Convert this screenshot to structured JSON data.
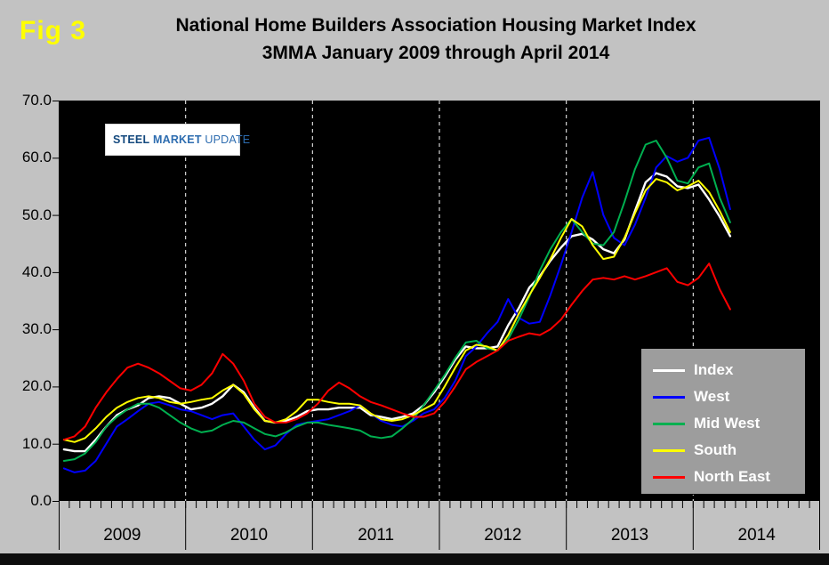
{
  "figure_label": "Fig 3",
  "title": {
    "line1": "National Home Builders Association Housing Market Index",
    "line2": "3MMA January 2009 through April 2014"
  },
  "logo": {
    "steel": "STEEL",
    "market": "MARKET",
    "update": "UPDATE"
  },
  "chart_data": {
    "type": "line",
    "title": "National Home Builders Association Housing Market Index",
    "subtitle": "3MMA January 2009 through April 2014",
    "ylim": [
      0,
      70
    ],
    "y_tick_step": 10,
    "y_tick_labels": [
      "70.0",
      "60.0",
      "50.0",
      "40.0",
      "30.0",
      "20.0",
      "10.0",
      "0.0"
    ],
    "x_year_labels": [
      "2009",
      "2010",
      "2011",
      "2012",
      "2013",
      "2014"
    ],
    "x_axis_slots": 72,
    "plot_background": "#000000",
    "grid": "vertical dashed white lines at year boundaries, black plot area",
    "legend_position": "inside bottom-right",
    "months": [
      "2009-01",
      "2009-02",
      "2009-03",
      "2009-04",
      "2009-05",
      "2009-06",
      "2009-07",
      "2009-08",
      "2009-09",
      "2009-10",
      "2009-11",
      "2009-12",
      "2010-01",
      "2010-02",
      "2010-03",
      "2010-04",
      "2010-05",
      "2010-06",
      "2010-07",
      "2010-08",
      "2010-09",
      "2010-10",
      "2010-11",
      "2010-12",
      "2011-01",
      "2011-02",
      "2011-03",
      "2011-04",
      "2011-05",
      "2011-06",
      "2011-07",
      "2011-08",
      "2011-09",
      "2011-10",
      "2011-11",
      "2011-12",
      "2012-01",
      "2012-02",
      "2012-03",
      "2012-04",
      "2012-05",
      "2012-06",
      "2012-07",
      "2012-08",
      "2012-09",
      "2012-10",
      "2012-11",
      "2012-12",
      "2013-01",
      "2013-02",
      "2013-03",
      "2013-04",
      "2013-05",
      "2013-06",
      "2013-07",
      "2013-08",
      "2013-09",
      "2013-10",
      "2013-11",
      "2013-12",
      "2014-01",
      "2014-02",
      "2014-03",
      "2014-04"
    ],
    "series": [
      {
        "name": "Index",
        "color": "#ffffff",
        "values": [
          9.0,
          8.7,
          8.7,
          10.7,
          13.0,
          15.0,
          16.0,
          16.7,
          18.0,
          18.3,
          18.0,
          17.0,
          16.0,
          16.3,
          17.0,
          18.3,
          20.3,
          19.0,
          16.3,
          14.0,
          13.7,
          14.0,
          14.7,
          15.7,
          16.0,
          16.0,
          16.3,
          16.3,
          16.3,
          15.0,
          14.7,
          14.3,
          14.7,
          15.3,
          16.7,
          19.0,
          21.7,
          24.7,
          27.0,
          26.7,
          26.7,
          27.0,
          30.7,
          33.7,
          37.3,
          39.3,
          42.0,
          44.3,
          46.3,
          46.7,
          45.7,
          44.0,
          43.3,
          45.7,
          50.7,
          55.7,
          57.3,
          56.7,
          55.0,
          54.7,
          55.3,
          52.7,
          49.7,
          46.3
        ]
      },
      {
        "name": "West",
        "color": "#0000ff",
        "values": [
          5.7,
          5.0,
          5.3,
          7.0,
          10.0,
          13.0,
          14.3,
          15.7,
          17.0,
          17.3,
          16.7,
          16.0,
          15.7,
          15.0,
          14.3,
          15.0,
          15.3,
          13.0,
          10.7,
          9.0,
          9.7,
          11.7,
          13.3,
          13.7,
          14.0,
          14.3,
          15.0,
          15.7,
          16.7,
          15.3,
          14.0,
          13.3,
          13.0,
          14.0,
          15.3,
          16.0,
          18.0,
          21.0,
          25.3,
          27.0,
          29.3,
          31.3,
          35.3,
          32.0,
          31.0,
          31.3,
          36.0,
          41.3,
          47.0,
          53.0,
          57.5,
          50.0,
          46.0,
          44.7,
          48.3,
          53.0,
          58.3,
          60.3,
          59.3,
          60.0,
          63.0,
          63.5,
          58.0,
          51.0
        ]
      },
      {
        "name": "Mid West",
        "color": "#00b050",
        "values": [
          7.0,
          7.3,
          8.3,
          10.3,
          13.0,
          14.7,
          16.0,
          17.0,
          17.0,
          16.3,
          15.0,
          13.7,
          12.7,
          12.0,
          12.3,
          13.3,
          14.0,
          13.7,
          12.7,
          11.7,
          11.3,
          12.0,
          13.0,
          13.7,
          13.7,
          13.3,
          13.0,
          12.7,
          12.3,
          11.3,
          11.0,
          11.3,
          12.7,
          14.3,
          16.7,
          19.3,
          22.0,
          25.0,
          27.7,
          28.0,
          26.7,
          26.3,
          28.3,
          31.7,
          35.7,
          40.3,
          44.0,
          47.0,
          49.3,
          47.0,
          45.0,
          44.7,
          47.0,
          52.3,
          58.0,
          62.3,
          63.0,
          60.0,
          56.0,
          55.5,
          58.3,
          59.0,
          53.0,
          48.7
        ]
      },
      {
        "name": "South",
        "color": "#ffff00",
        "values": [
          10.7,
          10.3,
          11.0,
          12.7,
          14.7,
          16.3,
          17.3,
          18.0,
          18.3,
          18.0,
          17.3,
          17.0,
          17.3,
          17.7,
          18.0,
          19.3,
          20.3,
          18.7,
          16.0,
          14.0,
          13.7,
          14.3,
          15.7,
          17.7,
          17.7,
          17.3,
          17.0,
          17.0,
          16.7,
          15.3,
          14.3,
          14.0,
          14.3,
          15.0,
          16.0,
          17.0,
          20.0,
          23.3,
          26.3,
          27.3,
          27.0,
          26.3,
          29.0,
          32.7,
          36.0,
          39.0,
          42.3,
          46.0,
          49.3,
          48.0,
          44.7,
          42.3,
          42.7,
          46.0,
          50.3,
          54.3,
          56.3,
          55.7,
          54.3,
          55.0,
          56.0,
          54.0,
          50.7,
          47.0
        ]
      },
      {
        "name": "North East",
        "color": "#ff0000",
        "values": [
          10.7,
          11.3,
          13.0,
          16.3,
          19.0,
          21.3,
          23.3,
          24.0,
          23.3,
          22.3,
          21.0,
          19.7,
          19.3,
          20.3,
          22.3,
          25.7,
          24.0,
          21.0,
          17.0,
          14.7,
          13.7,
          13.7,
          14.3,
          15.3,
          17.0,
          19.3,
          20.7,
          19.7,
          18.3,
          17.3,
          16.7,
          16.0,
          15.3,
          14.7,
          14.7,
          15.3,
          17.3,
          20.0,
          23.0,
          24.3,
          25.3,
          26.3,
          28.0,
          28.7,
          29.3,
          29.0,
          30.0,
          31.7,
          34.3,
          36.7,
          38.7,
          39.0,
          38.7,
          39.3,
          38.7,
          39.3,
          40.0,
          40.7,
          38.3,
          37.7,
          39.0,
          41.5,
          37.0,
          33.5
        ]
      }
    ]
  }
}
